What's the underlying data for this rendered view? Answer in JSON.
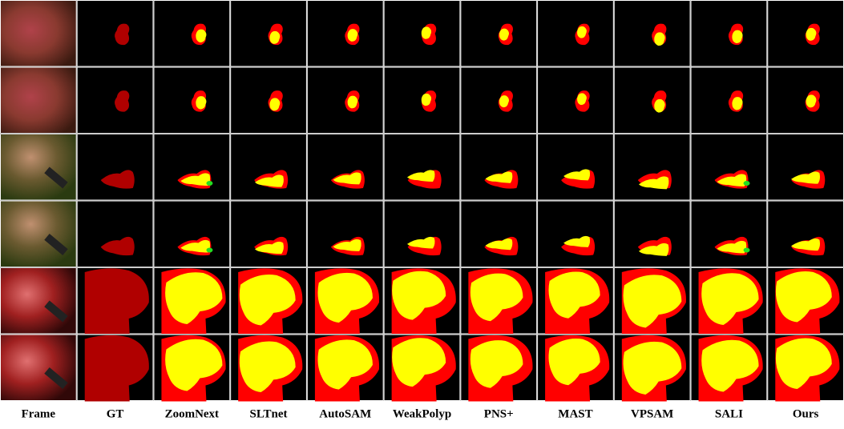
{
  "columns": [
    "Frame",
    "GT",
    "ZoomNext",
    "SLTnet",
    "AutoSAM",
    "WeakPolyp",
    "PNS+",
    "MAST",
    "VPSAM",
    "SALI",
    "Ours"
  ]
}
